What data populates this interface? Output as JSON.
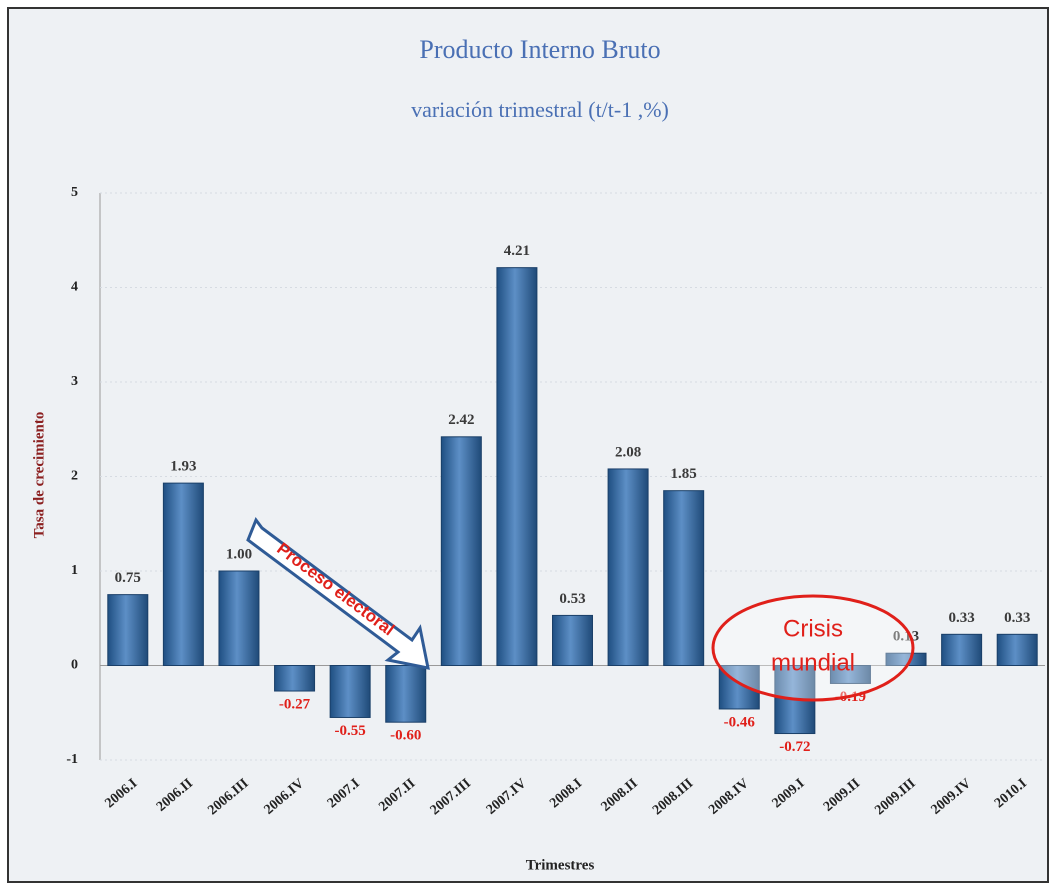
{
  "chart_data": {
    "type": "bar",
    "title": "Producto Interno Bruto",
    "subtitle": "variación trimestral (t/t-1 ,%)",
    "y_label": "Tasa de crecimiento",
    "x_label": "Trimestres",
    "categories": [
      "2006.I",
      "2006.II",
      "2006.III",
      "2006.IV",
      "2007.I",
      "2007.II",
      "2007.III",
      "2007.IV",
      "2008.I",
      "2008.II",
      "2008.III",
      "2008.IV",
      "2009.I",
      "2009.II",
      "2009.III",
      "2009.IV",
      "2010.I"
    ],
    "values": [
      0.75,
      1.93,
      1.0,
      -0.27,
      -0.55,
      -0.6,
      2.42,
      4.21,
      0.53,
      2.08,
      1.85,
      -0.46,
      -0.72,
      -0.19,
      0.13,
      0.33,
      0.33
    ],
    "value_labels": [
      "0.75",
      "1.93",
      "1.00",
      "-0.27",
      "-0.55",
      "-0.60",
      "2.42",
      "4.21",
      "0.53",
      "2.08",
      "1.85",
      "-0.46",
      "-0.72",
      "-0.19",
      "0.13",
      "0.33",
      "0.33"
    ],
    "color": "#3d6fa8",
    "ylim": [
      -1,
      5
    ],
    "yticks": [
      -1,
      0,
      1,
      2,
      3,
      4,
      5
    ],
    "grid": true,
    "annotations": [
      "Proceso electoral",
      "Crisis",
      "mundial"
    ]
  }
}
